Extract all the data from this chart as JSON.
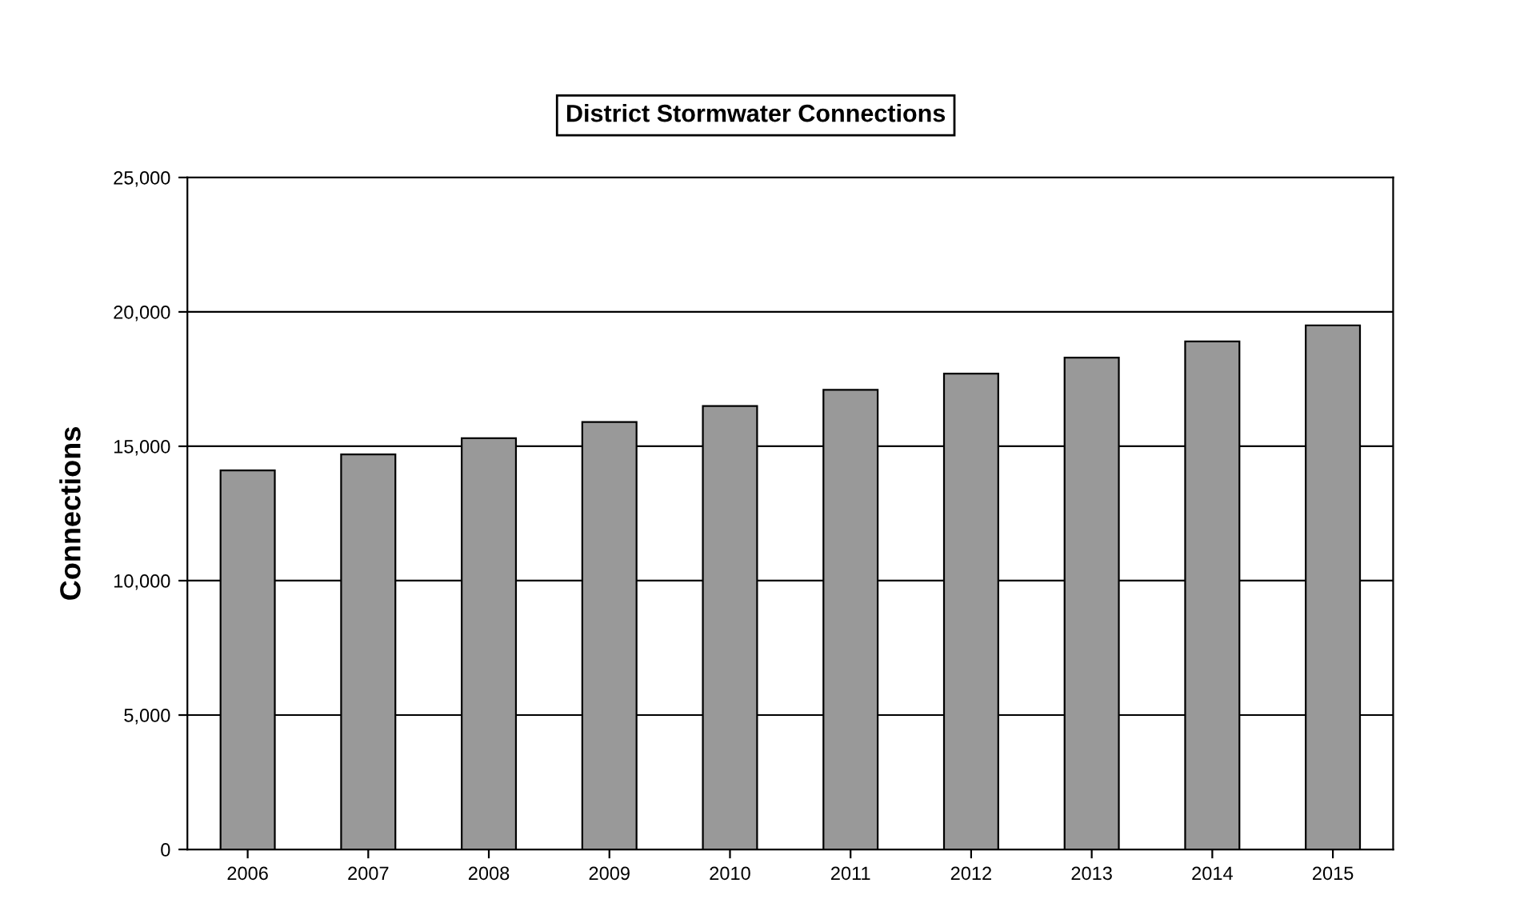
{
  "chart_data": {
    "type": "bar",
    "title": "District Stormwater Connections",
    "ylabel": "Connections",
    "categories": [
      "2006",
      "2007",
      "2008",
      "2009",
      "2010",
      "2011",
      "2012",
      "2013",
      "2014",
      "2015"
    ],
    "values": [
      14100,
      14700,
      15300,
      15900,
      16500,
      17100,
      17700,
      18300,
      18900,
      19500
    ],
    "color": "#999999",
    "ylim": [
      0,
      25000
    ],
    "yticks": [
      {
        "value": 0,
        "label": "0"
      },
      {
        "value": 5000,
        "label": "5,000"
      },
      {
        "value": 10000,
        "label": "10,000"
      },
      {
        "value": 15000,
        "label": "15,000"
      },
      {
        "value": 20000,
        "label": "20,000"
      },
      {
        "value": 25000,
        "label": "25,000"
      }
    ],
    "grid": "y",
    "legend": false
  }
}
